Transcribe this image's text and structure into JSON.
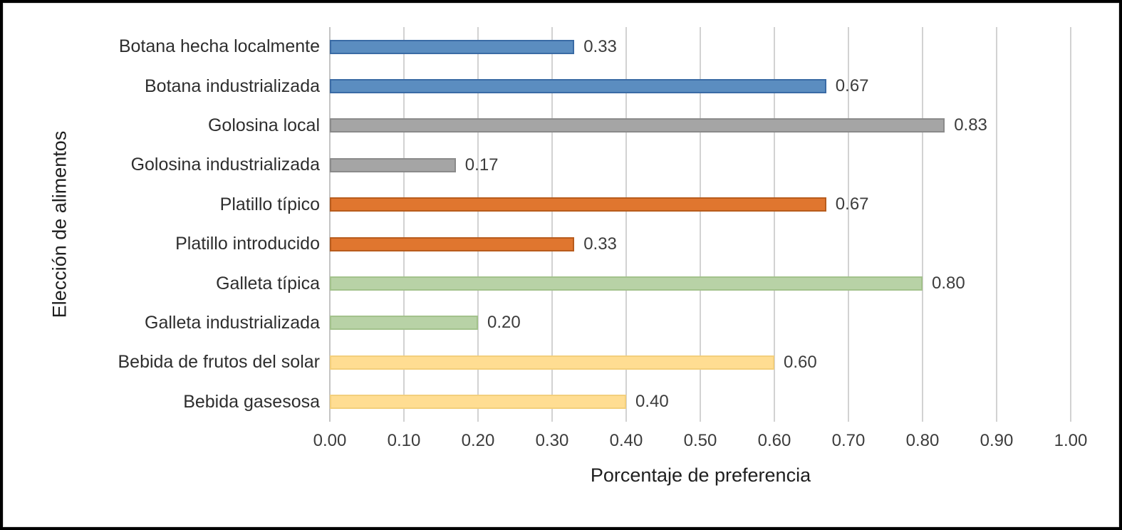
{
  "chart_data": {
    "type": "bar",
    "orientation": "horizontal",
    "title": "",
    "xlabel": "Porcentaje de preferencia",
    "ylabel": "Elección de alimentos",
    "xlim": [
      0.0,
      1.0
    ],
    "x_tick_step": 0.1,
    "x_tick_labels": [
      "0.00",
      "0.10",
      "0.20",
      "0.30",
      "0.40",
      "0.50",
      "0.60",
      "0.70",
      "0.80",
      "0.90",
      "1.00"
    ],
    "grid": "vertical-gridlines-only",
    "legend_position": "none",
    "categories": [
      "Botana hecha localmente",
      "Botana industrializada",
      "Golosina local",
      "Golosina industrializada",
      "Platillo típico",
      "Platillo introducido",
      "Galleta típica",
      "Galleta industrializada",
      "Bebida de frutos del solar",
      "Bebida gasesosa"
    ],
    "values": [
      0.33,
      0.67,
      0.83,
      0.17,
      0.67,
      0.33,
      0.8,
      0.2,
      0.6,
      0.4
    ],
    "value_labels": [
      "0.33",
      "0.67",
      "0.83",
      "0.17",
      "0.67",
      "0.33",
      "0.80",
      "0.20",
      "0.60",
      "0.40"
    ],
    "bar_colors": [
      "#5b8dc0",
      "#5b8dc0",
      "#a5a5a5",
      "#a5a5a5",
      "#e0762f",
      "#e0762f",
      "#b8d2a6",
      "#b8d2a6",
      "#ffdd92",
      "#ffdd92"
    ],
    "bar_border_colors": [
      "#3a6ba5",
      "#3a6ba5",
      "#8a8a8a",
      "#8a8a8a",
      "#b85c1d",
      "#b85c1d",
      "#a3c28c",
      "#a3c28c",
      "#f3cf7c",
      "#f3cf7c"
    ]
  },
  "colors": {
    "background": "#ffffff",
    "frame_border": "#000000",
    "gridline": "#d2d2d2",
    "axis_line": "#c4c4c4",
    "category_text": "#2e2e2e",
    "value_text": "#3c3c3c",
    "title_text": "#1f1f1f"
  }
}
